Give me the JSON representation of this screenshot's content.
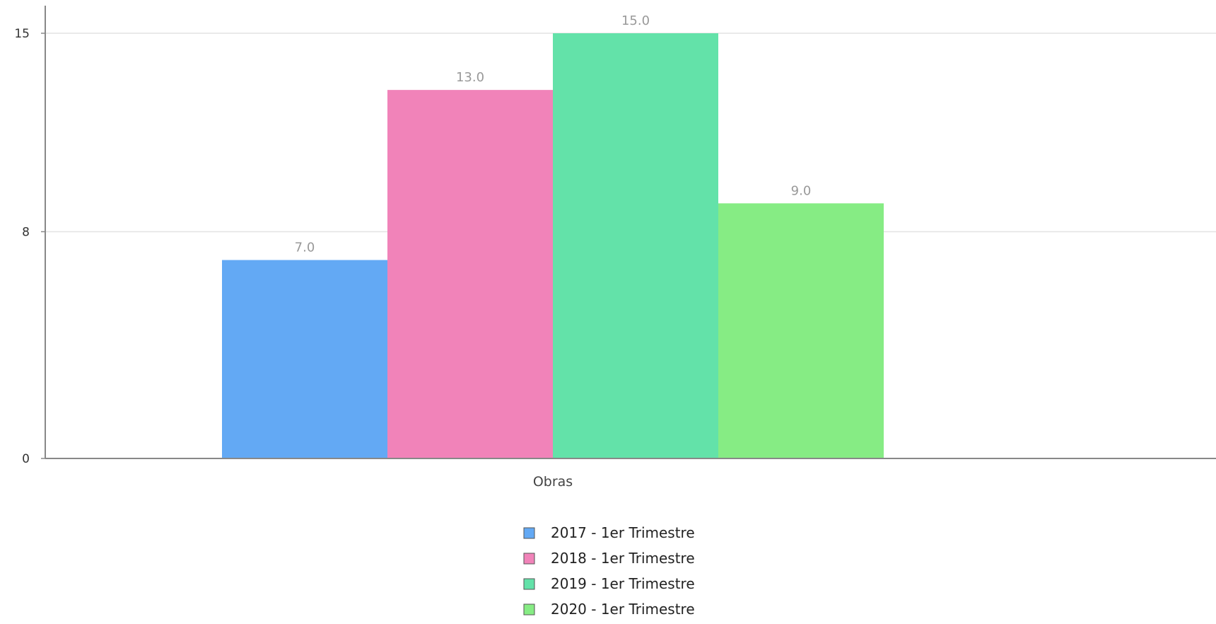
{
  "chart_data": {
    "type": "bar",
    "categories": [
      "Obras"
    ],
    "series": [
      {
        "name": "2017 - 1er Trimestre",
        "values": [
          7.0
        ],
        "color": "#63a9f4"
      },
      {
        "name": "2018 - 1er Trimestre",
        "values": [
          13.0
        ],
        "color": "#f183b9"
      },
      {
        "name": "2019 - 1er Trimestre",
        "values": [
          15.0
        ],
        "color": "#63e2a9"
      },
      {
        "name": "2020 - 1er Trimestre",
        "values": [
          9.0
        ],
        "color": "#86ec84"
      }
    ],
    "yticks": [
      0,
      8,
      15
    ],
    "ylim": [
      0,
      15
    ],
    "data_labels": [
      "7.0",
      "13.0",
      "15.0",
      "9.0"
    ],
    "grid": true,
    "legend_position": "bottom",
    "title": "",
    "xlabel": "",
    "ylabel": ""
  }
}
